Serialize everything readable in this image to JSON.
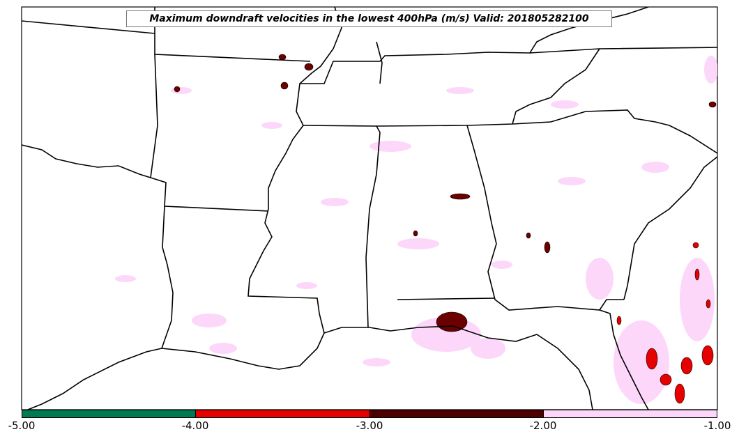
{
  "title": "Maximum downdraft velocities in the lowest 400hPa (m/s) Valid: 201805282100",
  "colorbar": {
    "segments": [
      {
        "range": [
          -5.0,
          -4.0
        ],
        "color": "#007a4f"
      },
      {
        "range": [
          -4.0,
          -3.0
        ],
        "color": "#e60000"
      },
      {
        "range": [
          -3.0,
          -2.0
        ],
        "color": "#4c0000"
      },
      {
        "range": [
          -2.0,
          -1.0
        ],
        "color": "#fcd7fa"
      }
    ],
    "ticks": [
      "-5.00",
      "-4.00",
      "-3.00",
      "-2.00",
      "-1.00"
    ]
  },
  "colors": {
    "light_pink": "#fcd7fa",
    "dark_red": "#6b0000",
    "red": "#e60000",
    "coast": "#000000"
  }
}
